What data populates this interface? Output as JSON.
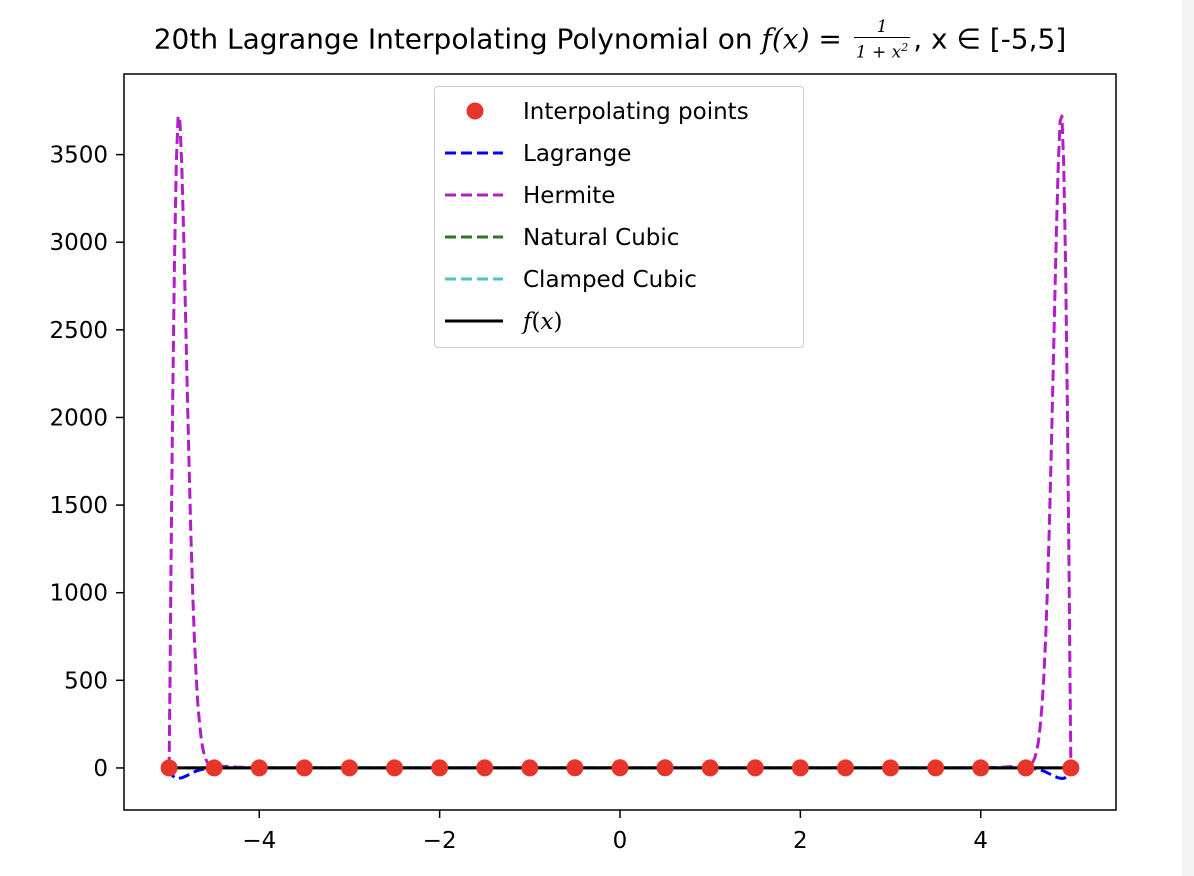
{
  "chart_data": {
    "type": "line",
    "title_prefix": "20th Lagrange Interpolating Polynomial on ",
    "title_math_lhs": "f(x) = ",
    "title_frac_num": "1",
    "title_frac_den": "1 + x",
    "title_frac_den_exp": "2",
    "title_suffix": ", x ∈ [-5,5]",
    "xlim": [
      -5.5,
      5.5
    ],
    "ylim": [
      -240,
      3960
    ],
    "xticks": [
      -4,
      -2,
      0,
      2,
      4
    ],
    "xtick_labels": [
      "−4",
      "−2",
      "0",
      "2",
      "4"
    ],
    "yticks": [
      0,
      500,
      1000,
      1500,
      2000,
      2500,
      3000,
      3500
    ],
    "ytick_labels": [
      "0",
      "500",
      "1000",
      "1500",
      "2000",
      "2500",
      "3000",
      "3500"
    ],
    "legend_position": "upper center",
    "grid": false,
    "interpolating_points": {
      "x": [
        -5,
        -4.5,
        -4,
        -3.5,
        -3,
        -2.5,
        -2,
        -1.5,
        -1,
        -0.5,
        0,
        0.5,
        1,
        1.5,
        2,
        2.5,
        3,
        3.5,
        4,
        4.5,
        5
      ],
      "y": [
        0.0385,
        0.0471,
        0.0588,
        0.0755,
        0.1,
        0.1379,
        0.2,
        0.3077,
        0.5,
        0.8,
        1,
        0.8,
        0.5,
        0.3077,
        0.2,
        0.1379,
        0.1,
        0.0755,
        0.0588,
        0.0471,
        0.0385
      ]
    },
    "series": [
      {
        "name": "Interpolating points",
        "style": "markers",
        "color": "#e8352a"
      },
      {
        "name": "Lagrange",
        "style": "dashed",
        "color": "#0000ff",
        "x": [
          -5,
          -4.97,
          -4.93,
          -4.9,
          -4.86,
          -4.82,
          -4.78,
          -4.74,
          -4.7,
          -4.65,
          -4.6,
          -4.55,
          -4.5,
          -4.3,
          -4,
          0,
          4,
          4.3,
          4.5,
          4.55,
          4.6,
          4.65,
          4.7,
          4.74,
          4.78,
          4.82,
          4.86,
          4.9,
          4.93,
          4.97,
          5
        ],
        "y": [
          0,
          -40,
          -58,
          -60,
          -56,
          -48,
          -38,
          -28,
          -18,
          -10,
          -5,
          -2,
          0,
          0,
          0,
          0,
          0,
          0,
          0,
          -2,
          -5,
          -10,
          -18,
          -28,
          -38,
          -48,
          -56,
          -60,
          -58,
          -40,
          0
        ]
      },
      {
        "name": "Hermite",
        "style": "dashed",
        "color": "#b01ec6",
        "x": [
          -5,
          -4.99,
          -4.98,
          -4.96,
          -4.94,
          -4.92,
          -4.9,
          -4.88,
          -4.86,
          -4.84,
          -4.82,
          -4.8,
          -4.78,
          -4.76,
          -4.74,
          -4.72,
          -4.7,
          -4.68,
          -4.66,
          -4.64,
          -4.62,
          -4.6,
          -4.58,
          -4.56,
          -4.54,
          -4.52,
          -4.5,
          -4.4,
          -4.25,
          -4.1,
          -4,
          0,
          4,
          4.1,
          4.25,
          4.4,
          4.5,
          4.52,
          4.54,
          4.56,
          4.58,
          4.6,
          4.62,
          4.64,
          4.66,
          4.68,
          4.7,
          4.72,
          4.74,
          4.76,
          4.78,
          4.8,
          4.82,
          4.84,
          4.86,
          4.88,
          4.9,
          4.92,
          4.94,
          4.96,
          4.98,
          4.99,
          5
        ],
        "y": [
          0,
          500,
          1100,
          2100,
          2900,
          3450,
          3720,
          3690,
          3450,
          3080,
          2650,
          2200,
          1770,
          1370,
          1030,
          750,
          530,
          360,
          240,
          150,
          95,
          58,
          35,
          20,
          12,
          6,
          3,
          10,
          5,
          2,
          0,
          0,
          0,
          2,
          5,
          10,
          3,
          6,
          12,
          20,
          35,
          58,
          95,
          150,
          240,
          360,
          530,
          750,
          1030,
          1370,
          1770,
          2200,
          2650,
          3080,
          3450,
          3690,
          3720,
          3450,
          2900,
          2100,
          1100,
          500,
          0
        ]
      },
      {
        "name": "Natural Cubic",
        "style": "dashed",
        "color": "#2a7a1e",
        "x": [
          -5,
          5
        ],
        "y": [
          0,
          0
        ]
      },
      {
        "name": "Clamped Cubic",
        "style": "dashed",
        "color": "#4cc4c4",
        "x": [
          -5,
          5
        ],
        "y": [
          0,
          0
        ]
      },
      {
        "name": "f(x)",
        "style": "solid",
        "color": "#000000",
        "x": [
          -5,
          5
        ],
        "y": [
          0,
          0
        ]
      }
    ]
  }
}
